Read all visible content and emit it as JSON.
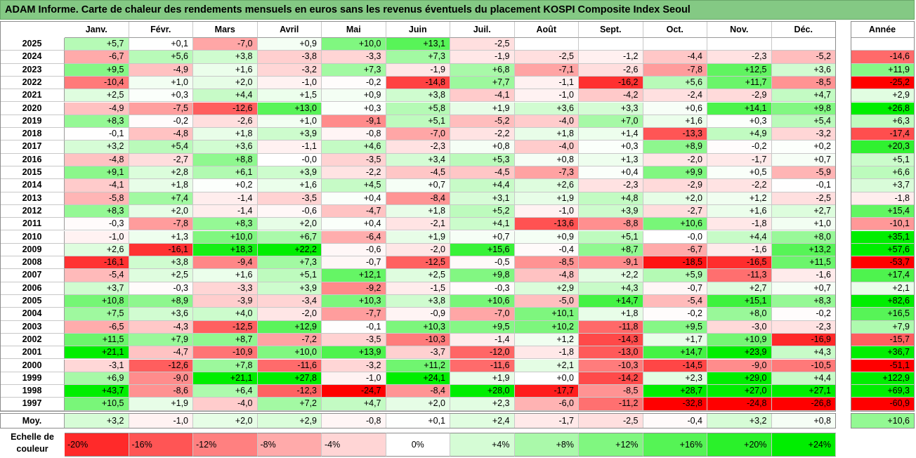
{
  "title": "ADAM Informe. Carte de chaleur des rendements mensuels en euros sans les revenus éventuels du placement KOSPI Composite Index Seoul",
  "chart_data": {
    "type": "heatmap",
    "months": [
      "Janv.",
      "Févr.",
      "Mars",
      "Avril",
      "Mai",
      "Juin",
      "Juil.",
      "Août",
      "Sept.",
      "Oct.",
      "Nov.",
      "Déc."
    ],
    "year_header": "Année",
    "avg_label": "Moy.",
    "rows": [
      {
        "year": "2025",
        "months": [
          "+5,7",
          "+0,1",
          "-7,0",
          "+0,9",
          "+10,0",
          "+13,1",
          "-2,5",
          "",
          "",
          "",
          "",
          ""
        ],
        "annual": ""
      },
      {
        "year": "2024",
        "months": [
          "-6,7",
          "+5,6",
          "+3,8",
          "-3,8",
          "-3,3",
          "+7,3",
          "-1,9",
          "-2,5",
          "-1,2",
          "-4,4",
          "-2,3",
          "-5,2"
        ],
        "annual": "-14,6"
      },
      {
        "year": "2023",
        "months": [
          "+9,5",
          "-4,9",
          "+1,6",
          "-3,2",
          "+7,3",
          "-1,9",
          "+6,8",
          "-7,1",
          "-2,6",
          "-7,8",
          "+12,5",
          "+3,6"
        ],
        "annual": "+11,9"
      },
      {
        "year": "2022",
        "months": [
          "-10,4",
          "+1,0",
          "+2,0",
          "-1,0",
          "-0,2",
          "-14,8",
          "+7,7",
          "-1,1",
          "-16,2",
          "+5,6",
          "+11,7",
          "-8,5"
        ],
        "annual": "-25,2"
      },
      {
        "year": "2021",
        "months": [
          "+2,5",
          "+0,3",
          "+4,4",
          "+1,5",
          "+0,9",
          "+3,8",
          "-4,1",
          "-1,0",
          "-4,2",
          "-2,4",
          "-2,9",
          "+4,7"
        ],
        "annual": "+2,9"
      },
      {
        "year": "2020",
        "months": [
          "-4,9",
          "-7,5",
          "-12,6",
          "+13,0",
          "+0,3",
          "+5,8",
          "+1,9",
          "+3,6",
          "+3,3",
          "+0,6",
          "+14,1",
          "+9,8"
        ],
        "annual": "+26,8"
      },
      {
        "year": "2019",
        "months": [
          "+8,3",
          "-0,2",
          "-2,6",
          "+1,0",
          "-9,1",
          "+5,1",
          "-5,2",
          "-4,0",
          "+7,0",
          "+1,6",
          "+0,3",
          "+5,4"
        ],
        "annual": "+6,3"
      },
      {
        "year": "2018",
        "months": [
          "-0,1",
          "-4,8",
          "+1,8",
          "+3,9",
          "-0,8",
          "-7,0",
          "-2,2",
          "+1,8",
          "+1,4",
          "-13,3",
          "+4,9",
          "-3,2"
        ],
        "annual": "-17,4"
      },
      {
        "year": "2017",
        "months": [
          "+3,2",
          "+5,4",
          "+3,6",
          "-1,1",
          "+4,6",
          "-2,3",
          "+0,8",
          "-4,0",
          "+0,3",
          "+8,9",
          "-0,2",
          "+0,2"
        ],
        "annual": "+20,3"
      },
      {
        "year": "2016",
        "months": [
          "-4,8",
          "-2,7",
          "+8,8",
          "-0,0",
          "-3,5",
          "+3,4",
          "+5,3",
          "+0,8",
          "+1,3",
          "-2,0",
          "-1,7",
          "+0,7"
        ],
        "annual": "+5,1"
      },
      {
        "year": "2015",
        "months": [
          "+9,1",
          "+2,8",
          "+6,1",
          "+3,9",
          "-2,2",
          "-4,5",
          "-4,5",
          "-7,3",
          "+0,4",
          "+9,9",
          "+0,5",
          "-5,9"
        ],
        "annual": "+6,6"
      },
      {
        "year": "2014",
        "months": [
          "-4,1",
          "+1,8",
          "+0,2",
          "+1,6",
          "+4,5",
          "+0,7",
          "+4,4",
          "+2,6",
          "-2,3",
          "-2,9",
          "-2,2",
          "-0,1"
        ],
        "annual": "+3,7"
      },
      {
        "year": "2013",
        "months": [
          "-5,8",
          "+7,4",
          "-1,4",
          "-3,5",
          "+0,4",
          "-8,4",
          "+3,1",
          "+1,9",
          "+4,8",
          "+2,0",
          "+1,2",
          "-2,5"
        ],
        "annual": "-1,8"
      },
      {
        "year": "2012",
        "months": [
          "+8,3",
          "+2,0",
          "-1,4",
          "-0,6",
          "-4,7",
          "+1,8",
          "+5,2",
          "-1,0",
          "+3,9",
          "-2,7",
          "+1,6",
          "+2,7"
        ],
        "annual": "+15,4"
      },
      {
        "year": "2011",
        "months": [
          "-0,3",
          "-7,8",
          "+8,3",
          "+2,0",
          "+0,4",
          "-2,1",
          "+4,1",
          "-13,6",
          "-8,8",
          "+10,6",
          "-1,8",
          "+1,0"
        ],
        "annual": "-10,1"
      },
      {
        "year": "2010",
        "months": [
          "-1,0",
          "+1,3",
          "+10,0",
          "+6,7",
          "-6,4",
          "+1,9",
          "+0,7",
          "+0,9",
          "+5,1",
          "-0,0",
          "+4,4",
          "+8,0"
        ],
        "annual": "+35,1"
      },
      {
        "year": "2009",
        "months": [
          "+2,6",
          "-16,1",
          "+18,3",
          "+22,2",
          "-0,6",
          "-2,0",
          "+15,6",
          "-0,4",
          "+8,7",
          "-6,7",
          "-1,6",
          "+13,2"
        ],
        "annual": "+57,6"
      },
      {
        "year": "2008",
        "months": [
          "-16,1",
          "+3,8",
          "-9,4",
          "+7,3",
          "-0,7",
          "-12,5",
          "-0,5",
          "-8,5",
          "-9,1",
          "-18,5",
          "-16,5",
          "+11,5"
        ],
        "annual": "-53,7"
      },
      {
        "year": "2007",
        "months": [
          "-5,4",
          "+2,5",
          "+1,6",
          "+5,1",
          "+12,1",
          "+2,5",
          "+9,8",
          "-4,8",
          "+2,2",
          "+5,9",
          "-11,3",
          "-1,6"
        ],
        "annual": "+17,4"
      },
      {
        "year": "2006",
        "months": [
          "+3,7",
          "-0,3",
          "-3,3",
          "+3,9",
          "-9,2",
          "-1,5",
          "-0,3",
          "+2,9",
          "+4,3",
          "-0,7",
          "+2,7",
          "+0,7"
        ],
        "annual": "+2,1"
      },
      {
        "year": "2005",
        "months": [
          "+10,8",
          "+8,9",
          "-3,9",
          "-3,4",
          "+10,3",
          "+3,8",
          "+10,6",
          "-5,0",
          "+14,7",
          "-5,4",
          "+15,1",
          "+8,3"
        ],
        "annual": "+82,6"
      },
      {
        "year": "2004",
        "months": [
          "+7,5",
          "+3,6",
          "+4,0",
          "-2,0",
          "-7,7",
          "-0,9",
          "-7,0",
          "+10,1",
          "+1,8",
          "-0,2",
          "+8,0",
          "-0,2"
        ],
        "annual": "+16,5"
      },
      {
        "year": "2003",
        "months": [
          "-6,5",
          "-4,3",
          "-12,5",
          "+12,9",
          "-0,1",
          "+10,3",
          "+9,5",
          "+10,2",
          "-11,8",
          "+9,5",
          "-3,0",
          "-2,3"
        ],
        "annual": "+7,9"
      },
      {
        "year": "2002",
        "months": [
          "+11,5",
          "+7,9",
          "+8,7",
          "-7,2",
          "-3,5",
          "-10,3",
          "-1,4",
          "+1,2",
          "-14,3",
          "+1,7",
          "+10,9",
          "-16,9"
        ],
        "annual": "-15,7"
      },
      {
        "year": "2001",
        "months": [
          "+21,1",
          "-4,7",
          "-10,9",
          "+10,0",
          "+13,9",
          "-3,7",
          "-12,0",
          "-1,8",
          "-13,0",
          "+14,7",
          "+23,9",
          "+4,3"
        ],
        "annual": "+36,7"
      },
      {
        "year": "2000",
        "months": [
          "-3,1",
          "-12,6",
          "+7,8",
          "-11,6",
          "-3,2",
          "+11,2",
          "-11,6",
          "+2,1",
          "-10,3",
          "-14,5",
          "-9,0",
          "-10,5"
        ],
        "annual": "-51,1"
      },
      {
        "year": "1999",
        "months": [
          "+6,9",
          "-9,0",
          "+21,1",
          "+27,8",
          "-1,0",
          "+24,1",
          "+1,9",
          "+0,0",
          "-14,2",
          "+2,3",
          "+29,0",
          "+4,4"
        ],
        "annual": "+122,9"
      },
      {
        "year": "1998",
        "months": [
          "+43,7",
          "-8,6",
          "+6,4",
          "-12,3",
          "-24,7",
          "-8,4",
          "+28,0",
          "-17,7",
          "-8,5",
          "+28,7",
          "+27,0",
          "+27,1"
        ],
        "annual": "+69,3"
      },
      {
        "year": "1997",
        "months": [
          "+10,5",
          "+1,9",
          "-4,0",
          "+7,2",
          "+4,7",
          "+2,0",
          "+2,3",
          "-6,0",
          "-11,2",
          "-32,8",
          "-24,8",
          "-26,8"
        ],
        "annual": "-60,9"
      }
    ],
    "average": {
      "months": [
        "+3,2",
        "-1,0",
        "+2,0",
        "+2,9",
        "-0,8",
        "+0,1",
        "+2,4",
        "-1,7",
        "-2,5",
        "-0,4",
        "+3,2",
        "+0,8"
      ],
      "annual": "+10,6"
    },
    "scale": {
      "label": "Echelle de couleur",
      "steps": [
        "-20%",
        "-16%",
        "-12%",
        "-8%",
        "-4%",
        "0%",
        "+4%",
        "+8%",
        "+12%",
        "+16%",
        "+20%",
        "+24%"
      ]
    },
    "colors": {
      "negative_max": "#ff0000",
      "positive_max": "#00ee00",
      "neutral": "#ffffff",
      "title_bg": "#84c984"
    }
  }
}
